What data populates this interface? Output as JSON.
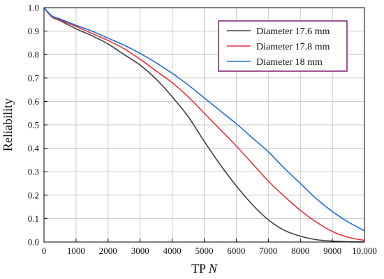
{
  "chart_data": {
    "type": "line",
    "title": "",
    "xlabel": "TP",
    "xlabel_var": "N",
    "ylabel": "Reliability",
    "xlim": [
      0,
      10000
    ],
    "ylim": [
      0,
      1.0
    ],
    "grid": true,
    "legend_position": "top-right",
    "x_ticks": [
      0,
      1000,
      2000,
      3000,
      4000,
      5000,
      6000,
      7000,
      8000,
      9000,
      10000
    ],
    "x_tick_labels": [
      "0",
      "1000",
      "2000",
      "3000",
      "4000",
      "5000",
      "6000",
      "7000",
      "8000",
      "9000",
      "10,000"
    ],
    "y_ticks": [
      0,
      0.1,
      0.2,
      0.3,
      0.4,
      0.5,
      0.6,
      0.7,
      0.8,
      0.9,
      1.0
    ],
    "y_tick_labels": [
      "0.0",
      "0.1",
      "0.2",
      "0.3",
      "0.4",
      "0.5",
      "0.6",
      "0.7",
      "0.8",
      "0.9",
      "1.0"
    ],
    "x": [
      0,
      250,
      500,
      1000,
      1500,
      2000,
      2500,
      3000,
      3500,
      4000,
      4500,
      5000,
      5500,
      6000,
      6500,
      7000,
      7500,
      8000,
      8500,
      9000,
      9500,
      10000
    ],
    "series": [
      {
        "name": "Diameter 17.6 mm",
        "color": "#404040",
        "values": [
          1.0,
          0.96,
          0.945,
          0.91,
          0.88,
          0.845,
          0.8,
          0.755,
          0.695,
          0.62,
          0.535,
          0.43,
          0.33,
          0.24,
          0.16,
          0.095,
          0.05,
          0.025,
          0.01,
          0.004,
          0.001,
          0.0
        ]
      },
      {
        "name": "Diameter 17.8 mm",
        "color": "#e8333a",
        "values": [
          1.0,
          0.962,
          0.948,
          0.92,
          0.89,
          0.86,
          0.825,
          0.78,
          0.73,
          0.68,
          0.62,
          0.55,
          0.48,
          0.41,
          0.335,
          0.26,
          0.195,
          0.135,
          0.085,
          0.045,
          0.02,
          0.007
        ]
      },
      {
        "name": "Diameter 18 mm",
        "color": "#1f6fd8",
        "values": [
          1.0,
          0.965,
          0.952,
          0.925,
          0.9,
          0.87,
          0.84,
          0.805,
          0.765,
          0.72,
          0.67,
          0.615,
          0.56,
          0.505,
          0.445,
          0.385,
          0.315,
          0.25,
          0.185,
          0.13,
          0.085,
          0.048
        ]
      }
    ]
  }
}
